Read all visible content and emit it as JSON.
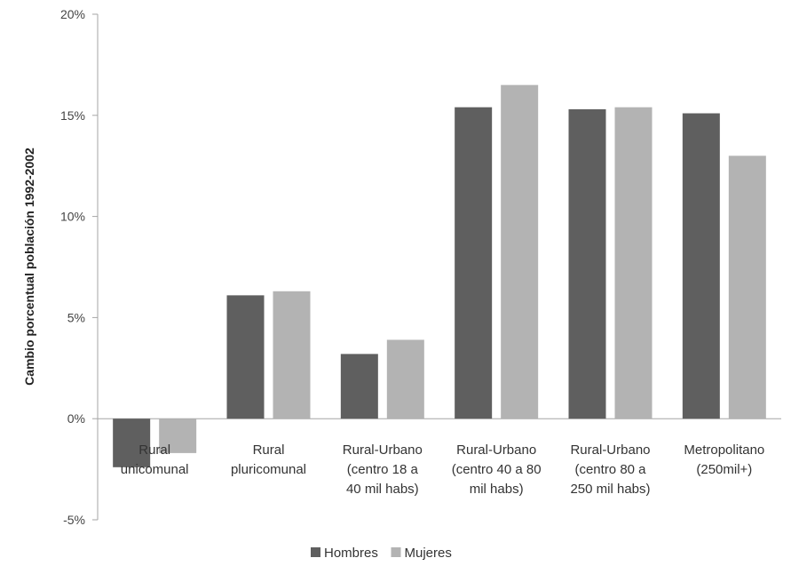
{
  "chart_data": {
    "type": "bar",
    "title": "",
    "xlabel": "",
    "ylabel": "Cambio porcentual población 1992-2002",
    "ylim": [
      -5,
      20
    ],
    "yticks": [
      "-5%",
      "0%",
      "5%",
      "10%",
      "15%",
      "20%"
    ],
    "ytick_values": [
      -5,
      0,
      5,
      10,
      15,
      20
    ],
    "grid": false,
    "legend_position": "bottom",
    "categories": [
      [
        "Rural",
        "unicomunal"
      ],
      [
        "Rural",
        "pluricomunal"
      ],
      [
        "Rural-Urbano",
        "(centro 18  a",
        "40 mil habs)"
      ],
      [
        "Rural-Urbano",
        "(centro 40 a 80",
        "mil habs)"
      ],
      [
        "Rural-Urbano",
        "(centro 80  a",
        "250 mil habs)"
      ],
      [
        "Metropolitano",
        "(250mil+)"
      ]
    ],
    "series": [
      {
        "name": "Hombres",
        "color": "#5f5f5f",
        "values": [
          -2.4,
          6.1,
          3.2,
          15.4,
          15.3,
          15.1
        ]
      },
      {
        "name": "Mujeres",
        "color": "#b3b3b3",
        "values": [
          -1.7,
          6.3,
          3.9,
          16.5,
          15.4,
          13.0
        ]
      }
    ]
  }
}
